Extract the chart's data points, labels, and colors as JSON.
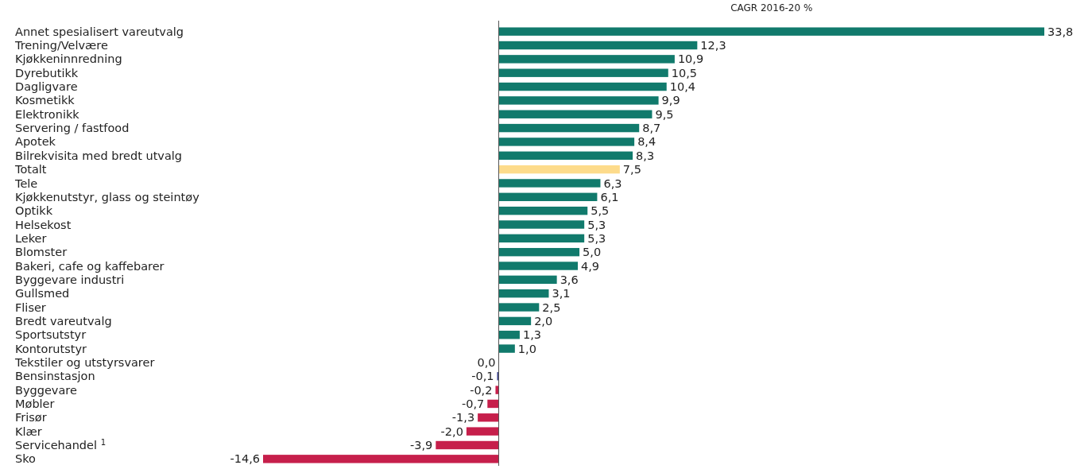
{
  "chart_data": {
    "type": "bar",
    "orientation": "horizontal",
    "title": "CAGR 2016-20 %",
    "data_labels": true,
    "categories": [
      "Annet spesialisert vareutvalg",
      "Trening/Velvære",
      "Kjøkkeninnredning",
      "Dyrebutikk",
      "Dagligvare",
      "Kosmetikk",
      "Elektronikk",
      "Servering / fastfood",
      "Apotek",
      "Bilrekvisita med bredt utvalg",
      "Totalt",
      "Tele",
      "Kjøkkenutstyr, glass og steintøy",
      "Optikk",
      "Helsekost",
      "Leker",
      "Blomster",
      "Bakeri, cafe og kaffebarer",
      "Byggevare industri",
      "Gullsmed",
      "Fliser",
      "Bredt vareutvalg",
      "Sportsutstyr",
      "Kontorutstyr",
      "Tekstiler og utstyrsvarer",
      "Bensinstasjon",
      "Byggevare",
      "Møbler",
      "Frisør",
      "Klær",
      "Servicehandel $^{1}$",
      "Sko"
    ],
    "values": [
      33.8,
      12.3,
      10.9,
      10.5,
      10.4,
      9.9,
      9.5,
      8.7,
      8.4,
      8.3,
      7.5,
      6.3,
      6.1,
      5.5,
      5.3,
      5.3,
      5.0,
      4.9,
      3.6,
      3.1,
      2.5,
      2.0,
      1.3,
      1.0,
      0.0,
      -0.1,
      -0.2,
      -0.7,
      -1.3,
      -2.0,
      -3.9,
      -14.6
    ],
    "value_labels": [
      "33,8",
      "12,3",
      "10,9",
      "10,5",
      "10,4",
      "9,9",
      "9,5",
      "8,7",
      "8,4",
      "8,3",
      "7,5",
      "6,3",
      "6,1",
      "5,5",
      "5,3",
      "5,3",
      "5,0",
      "4,9",
      "3,6",
      "3,1",
      "2,5",
      "2,0",
      "1,3",
      "1,0",
      "0,0",
      "-0,1",
      "-0,2",
      "-0,7",
      "-1,3",
      "-2,0",
      "-3,9",
      "-14,6"
    ],
    "colors": [
      "#117a6c",
      "#117a6c",
      "#117a6c",
      "#117a6c",
      "#117a6c",
      "#117a6c",
      "#117a6c",
      "#117a6c",
      "#117a6c",
      "#117a6c",
      "#fddb8b",
      "#117a6c",
      "#117a6c",
      "#117a6c",
      "#117a6c",
      "#117a6c",
      "#117a6c",
      "#117a6c",
      "#117a6c",
      "#117a6c",
      "#117a6c",
      "#117a6c",
      "#117a6c",
      "#117a6c",
      "#117a6c",
      "#3a3f8c",
      "#c61f4b",
      "#c61f4b",
      "#c61f4b",
      "#c61f4b",
      "#c61f4b",
      "#c61f4b"
    ]
  }
}
